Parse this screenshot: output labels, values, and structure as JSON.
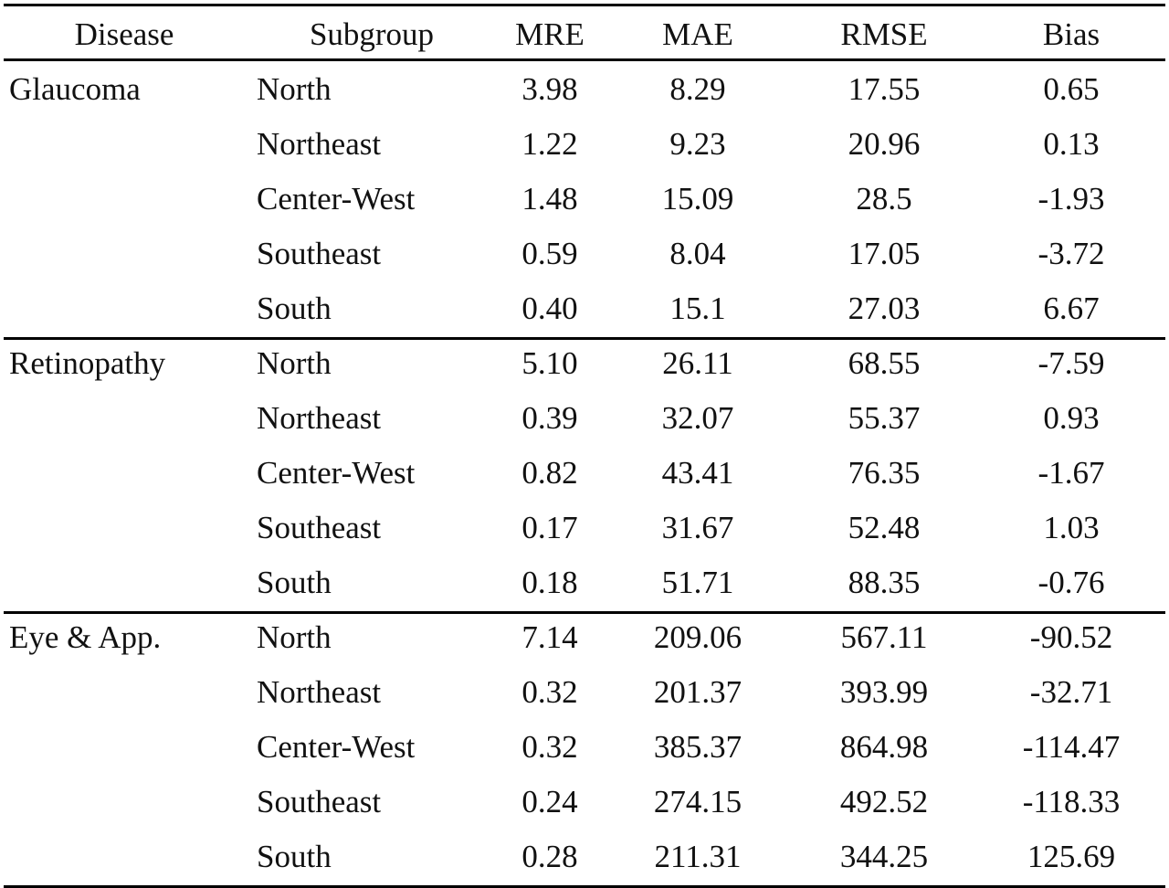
{
  "table": {
    "headers": {
      "disease": "Disease",
      "subgroup": "Subgroup",
      "mre": "MRE",
      "mae": "MAE",
      "rmse": "RMSE",
      "bias": "Bias"
    },
    "groups": [
      {
        "disease": "Glaucoma",
        "rows": [
          {
            "subgroup": "North",
            "mre": "3.98",
            "mae": "8.29",
            "rmse": "17.55",
            "bias": "0.65"
          },
          {
            "subgroup": "Northeast",
            "mre": "1.22",
            "mae": "9.23",
            "rmse": "20.96",
            "bias": "0.13"
          },
          {
            "subgroup": "Center-West",
            "mre": "1.48",
            "mae": "15.09",
            "rmse": "28.5",
            "bias": "-1.93"
          },
          {
            "subgroup": "Southeast",
            "mre": "0.59",
            "mae": "8.04",
            "rmse": "17.05",
            "bias": "-3.72"
          },
          {
            "subgroup": "South",
            "mre": "0.40",
            "mae": "15.1",
            "rmse": "27.03",
            "bias": "6.67"
          }
        ]
      },
      {
        "disease": "Retinopathy",
        "rows": [
          {
            "subgroup": "North",
            "mre": "5.10",
            "mae": "26.11",
            "rmse": "68.55",
            "bias": "-7.59"
          },
          {
            "subgroup": "Northeast",
            "mre": "0.39",
            "mae": "32.07",
            "rmse": "55.37",
            "bias": "0.93"
          },
          {
            "subgroup": "Center-West",
            "mre": "0.82",
            "mae": "43.41",
            "rmse": "76.35",
            "bias": "-1.67"
          },
          {
            "subgroup": "Southeast",
            "mre": "0.17",
            "mae": "31.67",
            "rmse": "52.48",
            "bias": "1.03"
          },
          {
            "subgroup": "South",
            "mre": "0.18",
            "mae": "51.71",
            "rmse": "88.35",
            "bias": "-0.76"
          }
        ]
      },
      {
        "disease": "Eye & App.",
        "rows": [
          {
            "subgroup": "North",
            "mre": "7.14",
            "mae": "209.06",
            "rmse": "567.11",
            "bias": "-90.52"
          },
          {
            "subgroup": "Northeast",
            "mre": "0.32",
            "mae": "201.37",
            "rmse": "393.99",
            "bias": "-32.71"
          },
          {
            "subgroup": "Center-West",
            "mre": "0.32",
            "mae": "385.37",
            "rmse": "864.98",
            "bias": "-114.47"
          },
          {
            "subgroup": "Southeast",
            "mre": "0.24",
            "mae": "274.15",
            "rmse": "492.52",
            "bias": "-118.33"
          },
          {
            "subgroup": "South",
            "mre": "0.28",
            "mae": "211.31",
            "rmse": "344.25",
            "bias": "125.69"
          }
        ]
      }
    ]
  }
}
